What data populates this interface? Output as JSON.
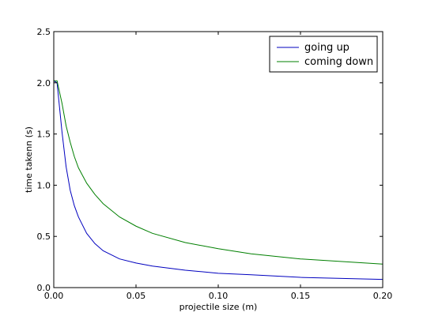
{
  "chart_data": {
    "type": "line",
    "title": "",
    "xlabel": "projectile size (m)",
    "ylabel": "time takenn (s)",
    "xlim": [
      0.0,
      0.2
    ],
    "ylim": [
      0.0,
      2.5
    ],
    "x_ticks": [
      "0.00",
      "0.05",
      "0.10",
      "0.15",
      "0.20"
    ],
    "y_ticks": [
      "0.0",
      "0.5",
      "1.0",
      "1.5",
      "2.0",
      "2.5"
    ],
    "grid": false,
    "legend_position": "top-right",
    "series": [
      {
        "name": "going up",
        "color": "#0000bf",
        "x": [
          0.0,
          0.002,
          0.005,
          0.0075,
          0.01,
          0.0125,
          0.015,
          0.02,
          0.025,
          0.03,
          0.04,
          0.05,
          0.06,
          0.08,
          0.1,
          0.12,
          0.15,
          0.2
        ],
        "y": [
          2.02,
          2.0,
          1.52,
          1.18,
          0.95,
          0.8,
          0.69,
          0.53,
          0.43,
          0.36,
          0.28,
          0.24,
          0.21,
          0.17,
          0.14,
          0.125,
          0.1,
          0.08
        ]
      },
      {
        "name": "coming down",
        "color": "#007f00",
        "x": [
          0.0,
          0.002,
          0.005,
          0.0075,
          0.01,
          0.0125,
          0.015,
          0.02,
          0.025,
          0.03,
          0.04,
          0.05,
          0.06,
          0.08,
          0.1,
          0.12,
          0.15,
          0.2
        ],
        "y": [
          2.02,
          2.02,
          1.8,
          1.58,
          1.42,
          1.28,
          1.17,
          1.02,
          0.91,
          0.82,
          0.69,
          0.6,
          0.53,
          0.44,
          0.38,
          0.33,
          0.28,
          0.23
        ]
      }
    ]
  }
}
